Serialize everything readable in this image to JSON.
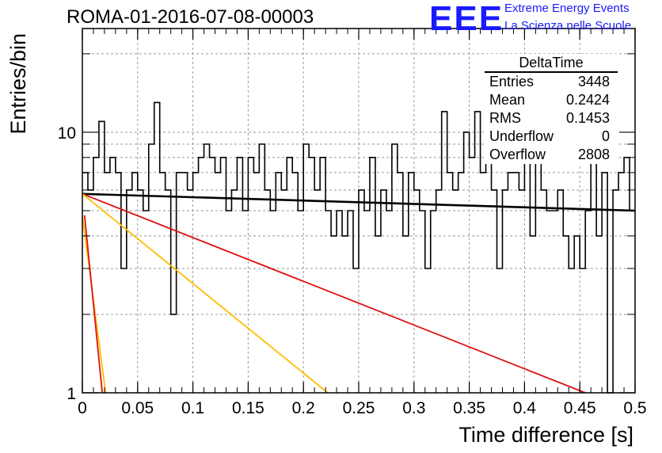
{
  "title": "ROMA-01-2016-07-08-00003",
  "logo": {
    "mark": "EEE",
    "line1": "Extreme Energy Events",
    "line2": "La Scienza nelle Scuole"
  },
  "stats_box": {
    "title": "DeltaTime",
    "rows": [
      {
        "label": "Entries",
        "value": "3448"
      },
      {
        "label": "Mean",
        "value": "0.2424"
      },
      {
        "label": "RMS",
        "value": "0.1453"
      },
      {
        "label": "Underflow",
        "value": "0"
      },
      {
        "label": "Overflow",
        "value": "2808"
      }
    ]
  },
  "chart_data": {
    "type": "line",
    "xlabel": "Time difference [s]",
    "ylabel": "Entries/bin",
    "xlim": [
      0,
      0.5
    ],
    "ylim": [
      1,
      25
    ],
    "y_scale": "log",
    "grid": true,
    "x_ticks": [
      "0",
      "0.05",
      "0.1",
      "0.15",
      "0.2",
      "0.25",
      "0.3",
      "0.35",
      "0.4",
      "0.45",
      "0.5"
    ],
    "y_ticks": [
      "1",
      "10"
    ],
    "histogram": {
      "bin_width": 0.005,
      "counts": [
        7,
        6,
        8,
        11,
        7,
        8,
        7,
        3,
        6,
        7,
        6,
        5,
        9,
        13,
        7,
        6,
        2,
        7,
        7,
        6,
        7,
        8,
        9,
        8,
        7,
        8,
        5,
        6,
        8,
        5,
        8,
        7,
        9,
        6,
        5,
        7,
        6,
        8,
        7,
        5,
        9,
        8,
        6,
        8,
        5,
        4,
        5,
        4,
        5,
        3,
        6,
        5,
        8,
        4,
        6,
        5,
        9,
        7,
        4,
        7,
        6,
        5,
        3,
        5,
        6,
        12,
        7,
        6,
        7,
        10,
        8,
        12,
        7,
        9,
        6,
        3,
        6,
        7,
        7,
        6,
        8,
        4,
        9,
        6,
        5,
        5,
        6,
        4,
        3,
        4,
        3,
        5,
        8,
        4,
        7,
        1,
        6,
        7,
        8,
        5
      ],
      "color": "#000000"
    },
    "fits": [
      {
        "color": "#000000",
        "x": [
          0,
          0.5
        ],
        "y": [
          5.8,
          5.0
        ]
      },
      {
        "color": "#dd1111",
        "x": [
          0,
          0.455
        ],
        "y": [
          5.8,
          1.0
        ]
      },
      {
        "color": "#ffbb00",
        "x": [
          0,
          0.222
        ],
        "y": [
          5.8,
          1.0
        ]
      },
      {
        "color": "#ffbb00",
        "x": [
          0,
          0.021
        ],
        "y": [
          4.8,
          1.0
        ]
      },
      {
        "color": "#dd1111",
        "x": [
          0.002,
          0.018
        ],
        "y": [
          4.8,
          1.0
        ]
      }
    ]
  }
}
